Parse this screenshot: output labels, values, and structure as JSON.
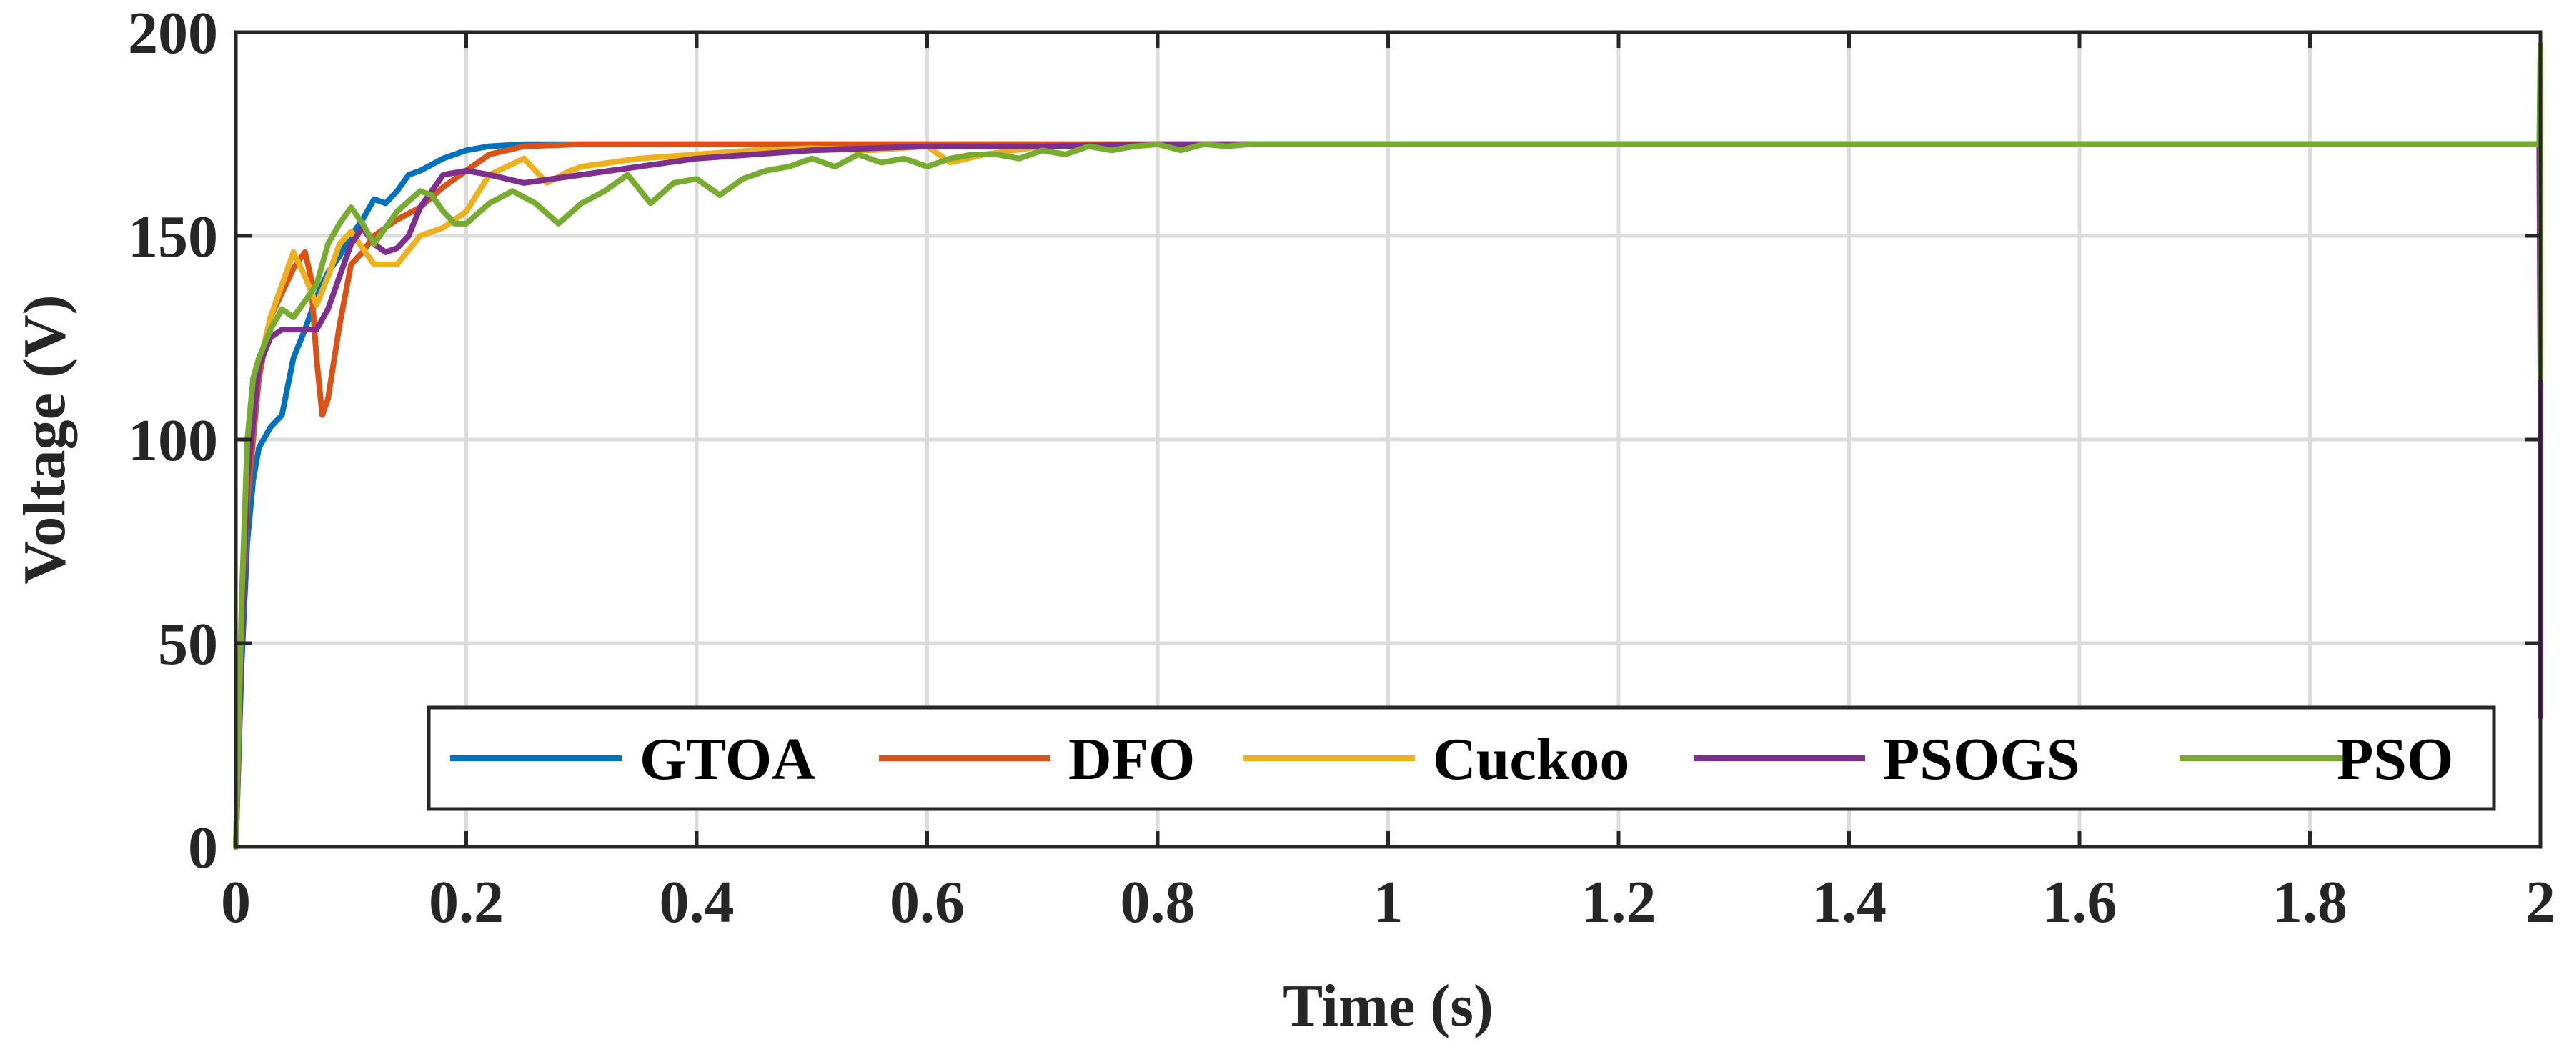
{
  "chart_data": {
    "type": "line",
    "xlabel": "Time (s)",
    "ylabel": "Voltage (V)",
    "xlim": [
      0,
      2
    ],
    "ylim": [
      0,
      200
    ],
    "xticks": [
      0,
      0.2,
      0.4,
      0.6,
      0.8,
      1,
      1.2,
      1.4,
      1.6,
      1.8,
      2
    ],
    "xtick_labels": [
      "0",
      "0.2",
      "0.4",
      "0.6",
      "0.8",
      "1",
      "1.2",
      "1.4",
      "1.6",
      "1.8",
      "2"
    ],
    "yticks": [
      0,
      50,
      100,
      150,
      200
    ],
    "ytick_labels": [
      "0",
      "50",
      "100",
      "150",
      "200"
    ],
    "grid": true,
    "legend_position": "bottom-right, horizontal",
    "series": [
      {
        "name": "GTOA",
        "color": "#0072BD",
        "x": [
          0,
          0.005,
          0.01,
          0.015,
          0.02,
          0.03,
          0.04,
          0.05,
          0.06,
          0.07,
          0.08,
          0.09,
          0.1,
          0.11,
          0.12,
          0.13,
          0.14,
          0.15,
          0.16,
          0.18,
          0.2,
          0.22,
          0.25,
          0.3,
          0.4,
          0.6,
          1.0,
          1.5,
          2.0
        ],
        "y": [
          0,
          45,
          75,
          90,
          98,
          103,
          106,
          120,
          127,
          135,
          141,
          145,
          150,
          154,
          159,
          158,
          161,
          165,
          166,
          169,
          171,
          172,
          172.5,
          172.5,
          172.5,
          172.5,
          172.5,
          172.5,
          172.5
        ]
      },
      {
        "name": "DFO",
        "color": "#D95319",
        "x": [
          0,
          0.005,
          0.01,
          0.02,
          0.03,
          0.04,
          0.05,
          0.06,
          0.065,
          0.07,
          0.075,
          0.08,
          0.09,
          0.1,
          0.11,
          0.12,
          0.14,
          0.16,
          0.18,
          0.2,
          0.22,
          0.25,
          0.3,
          0.4,
          0.6,
          1.0,
          1.5,
          2.0
        ],
        "y": [
          0,
          50,
          85,
          115,
          130,
          136,
          142,
          146,
          140,
          120,
          106,
          110,
          128,
          143,
          146,
          150,
          154,
          157,
          162,
          166,
          170,
          172,
          172.5,
          172.5,
          172.5,
          172.5,
          172.5,
          172.5
        ]
      },
      {
        "name": "Cuckoo",
        "color": "#EDB120",
        "x": [
          0,
          0.005,
          0.01,
          0.02,
          0.03,
          0.04,
          0.05,
          0.06,
          0.07,
          0.08,
          0.09,
          0.1,
          0.12,
          0.14,
          0.16,
          0.18,
          0.2,
          0.22,
          0.25,
          0.27,
          0.29,
          0.3,
          0.35,
          0.4,
          0.45,
          0.5,
          0.55,
          0.6,
          0.62,
          0.65,
          0.7,
          0.8,
          1.0,
          1.5,
          2.0
        ],
        "y": [
          0,
          55,
          90,
          118,
          130,
          138,
          146,
          140,
          133,
          140,
          148,
          151,
          143,
          143,
          150,
          152,
          156,
          165,
          169,
          163,
          166,
          167,
          169,
          170,
          171,
          171.5,
          171,
          172,
          168,
          170,
          172,
          172.5,
          172.5,
          172.5,
          172.5
        ]
      },
      {
        "name": "PSOGS",
        "color": "#7E2F8E",
        "x": [
          0,
          0.005,
          0.01,
          0.02,
          0.03,
          0.04,
          0.05,
          0.06,
          0.07,
          0.08,
          0.09,
          0.1,
          0.11,
          0.12,
          0.13,
          0.14,
          0.15,
          0.16,
          0.18,
          0.2,
          0.22,
          0.25,
          0.3,
          0.35,
          0.4,
          0.5,
          0.6,
          0.7,
          0.8,
          1.0,
          1.5,
          1.999,
          2.0,
          2.0
        ],
        "y": [
          0,
          50,
          90,
          118,
          125,
          127,
          127,
          127,
          127,
          132,
          140,
          148,
          152,
          148,
          146,
          147,
          150,
          157,
          165,
          166,
          165,
          163,
          165,
          167,
          169,
          171,
          172,
          172,
          172.5,
          172.5,
          172.5,
          172.5,
          113,
          32
        ]
      },
      {
        "name": "PSO",
        "color": "#77AC30",
        "x": [
          0,
          0.005,
          0.01,
          0.015,
          0.02,
          0.03,
          0.04,
          0.05,
          0.06,
          0.07,
          0.08,
          0.09,
          0.1,
          0.11,
          0.12,
          0.13,
          0.14,
          0.16,
          0.17,
          0.18,
          0.19,
          0.2,
          0.22,
          0.24,
          0.26,
          0.28,
          0.3,
          0.32,
          0.34,
          0.36,
          0.38,
          0.4,
          0.42,
          0.44,
          0.46,
          0.48,
          0.5,
          0.52,
          0.54,
          0.56,
          0.58,
          0.6,
          0.62,
          0.64,
          0.66,
          0.68,
          0.7,
          0.72,
          0.74,
          0.76,
          0.78,
          0.8,
          0.82,
          0.84,
          0.86,
          0.88,
          0.9,
          1.0,
          1.5,
          1.999,
          2.0,
          2.0
        ],
        "y": [
          0,
          60,
          100,
          115,
          120,
          127,
          132,
          130,
          134,
          138,
          148,
          153,
          157,
          153,
          148,
          152,
          156,
          161,
          160,
          156,
          153,
          153,
          158,
          161,
          158,
          153,
          158,
          161,
          165,
          158,
          163,
          164,
          160,
          164,
          166,
          167,
          169,
          167,
          170,
          168,
          169,
          167,
          169,
          170,
          170,
          169,
          171,
          170,
          172,
          171,
          172,
          172.5,
          171,
          172.5,
          172,
          172.5,
          172.5,
          172.5,
          172.5,
          172.5,
          197,
          115
        ]
      }
    ]
  }
}
